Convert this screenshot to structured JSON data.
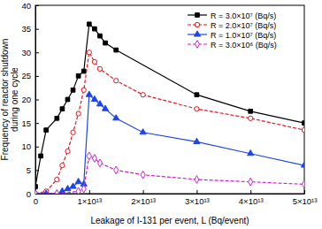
{
  "chart_data": {
    "type": "line",
    "x_label": "Leakage of I-131 per event, L (Bq/event)",
    "y_label": [
      "Frequency of reactor shutdown",
      "during one cycle"
    ],
    "xlim": [
      0,
      50000000000000
    ],
    "ylim": [
      0,
      40
    ],
    "xticks": [
      0,
      {
        "value": 10000000000000,
        "label": "1×10¹³"
      },
      {
        "value": 20000000000000,
        "label": "2×10¹³"
      },
      {
        "value": 30000000000000,
        "label": "3×10¹³"
      },
      {
        "value": 40000000000000,
        "label": "4×10¹³"
      },
      {
        "value": 50000000000000,
        "label": "5×10¹³"
      }
    ],
    "yticks": [
      0,
      5,
      10,
      15,
      20,
      25,
      30,
      35,
      40
    ],
    "legend": "upper right",
    "series": [
      {
        "name": "R = 3.0×10⁷ (Bq/s)",
        "color": "#000000",
        "marker": "square",
        "line_style": "solid",
        "x": [
          0,
          1000000000000,
          2000000000000,
          4000000000000,
          5000000000000,
          6000000000000,
          7000000000000,
          8000000000000,
          9000000000000,
          10000000000000,
          11000000000000,
          12000000000000,
          13000000000000,
          15000000000000,
          30000000000000,
          40000000000000,
          50000000000000
        ],
        "values": [
          1.5,
          8,
          13.5,
          16,
          18,
          20,
          22,
          25,
          26,
          36,
          35,
          33.5,
          32,
          30.5,
          21,
          17.5,
          15
        ]
      },
      {
        "name": "R = 2.0×10⁷ (Bq/s)",
        "color": "#e8141e",
        "marker": "circle-open",
        "line_style": "dashed",
        "x": [
          0,
          2000000000000,
          4000000000000,
          5000000000000,
          6000000000000,
          7000000000000,
          8000000000000,
          9000000000000,
          10000000000000,
          11000000000000,
          12000000000000,
          15000000000000,
          20000000000000,
          30000000000000,
          40000000000000,
          50000000000000
        ],
        "values": [
          0,
          0.5,
          3,
          6,
          9,
          13,
          17,
          22,
          30,
          28,
          26.5,
          24,
          21,
          18,
          16,
          13.5
        ]
      },
      {
        "name": "R = 1.0×10⁷ (Bq/s)",
        "color": "#1e46e6",
        "marker": "triangle",
        "line_style": "solid",
        "x": [
          0,
          2000000000000,
          4000000000000,
          5000000000000,
          6000000000000,
          7000000000000,
          8000000000000,
          9000000000000,
          10000000000000,
          11000000000000,
          12000000000000,
          13000000000000,
          15000000000000,
          20000000000000,
          30000000000000,
          40000000000000,
          50000000000000
        ],
        "values": [
          0,
          0,
          0,
          0.5,
          1,
          1.5,
          2.5,
          2,
          21,
          20,
          19,
          18,
          16,
          13,
          11,
          8.5,
          6
        ]
      },
      {
        "name": "R = 3.0×10⁶ (Bq/s)",
        "color": "#d21ed2",
        "marker": "diamond-open",
        "line_style": "dashed",
        "x": [
          0,
          4000000000000,
          8000000000000,
          9000000000000,
          10000000000000,
          11000000000000,
          12000000000000,
          15000000000000,
          20000000000000,
          30000000000000,
          40000000000000,
          50000000000000
        ],
        "values": [
          0,
          0,
          0.5,
          1,
          8,
          7.5,
          6.5,
          5,
          4,
          3,
          2.5,
          2
        ]
      }
    ]
  }
}
